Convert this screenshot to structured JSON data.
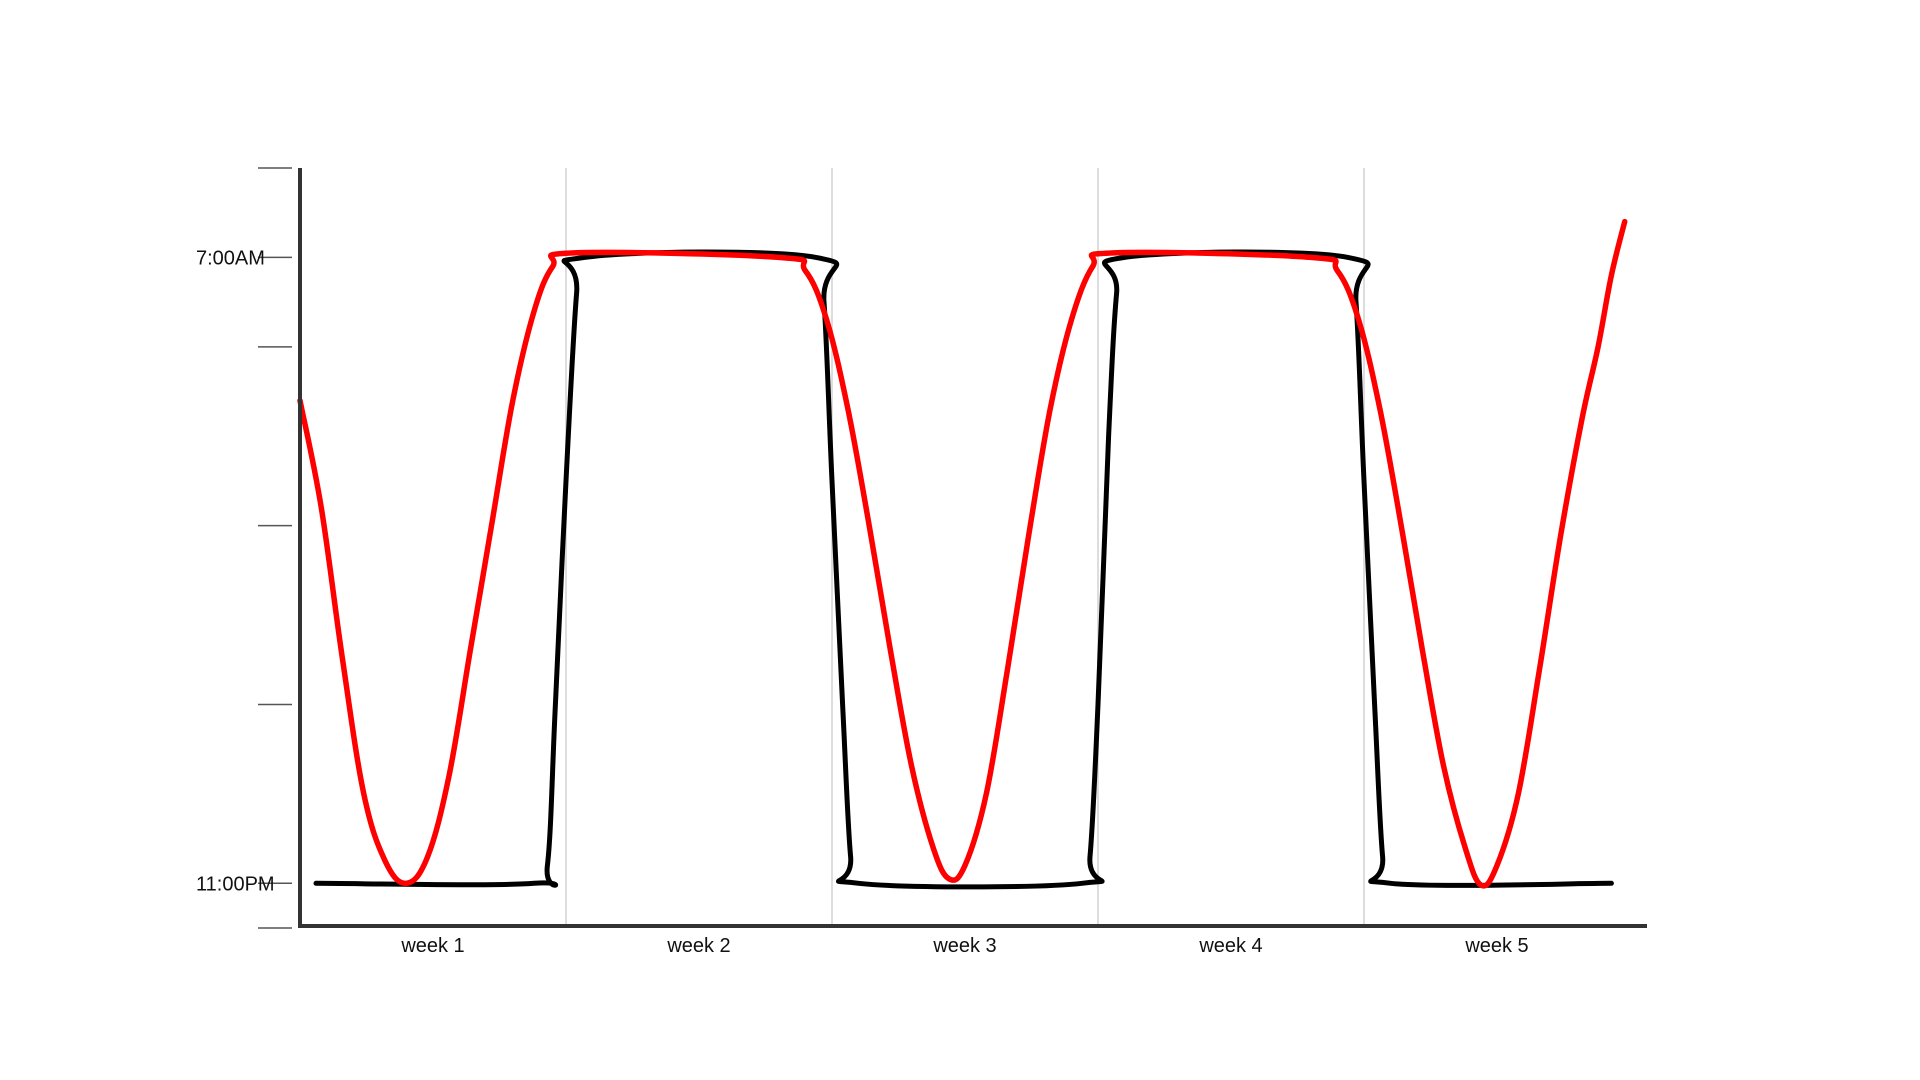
{
  "chart_data": {
    "type": "line",
    "title": "",
    "xlabel": "",
    "ylabel": "",
    "x_categories": [
      "week 1",
      "week 2",
      "week 3",
      "week 4",
      "week 5"
    ],
    "y_tick_labels": [
      {
        "value": 7,
        "label": "7:00AM"
      },
      {
        "value": 0,
        "label": "11:00PM"
      }
    ],
    "y_ticks": [
      -0.5,
      0,
      2,
      4,
      6,
      7,
      8
    ],
    "xlim": [
      0,
      5
    ],
    "ylim": [
      -0.5,
      8
    ],
    "x_gridlines": [
      1,
      2,
      3,
      4
    ],
    "grid": "vertical",
    "legend": "none",
    "series": [
      {
        "color": "#000000",
        "points": [
          [
            0.06,
            0
          ],
          [
            0.88,
            0
          ],
          [
            0.93,
            0.2
          ],
          [
            0.96,
            2
          ],
          [
            1.0,
            4.5
          ],
          [
            1.04,
            6.6
          ],
          [
            1.07,
            7
          ],
          [
            1.94,
            7
          ],
          [
            1.97,
            6.5
          ],
          [
            2.0,
            4.5
          ],
          [
            2.04,
            2
          ],
          [
            2.07,
            0.3
          ],
          [
            2.1,
            0
          ],
          [
            2.94,
            0
          ],
          [
            2.97,
            0.3
          ],
          [
            3.0,
            2
          ],
          [
            3.04,
            5
          ],
          [
            3.07,
            6.6
          ],
          [
            3.1,
            7
          ],
          [
            3.94,
            7
          ],
          [
            3.97,
            6.5
          ],
          [
            4.0,
            4.5
          ],
          [
            4.04,
            2
          ],
          [
            4.07,
            0.3
          ],
          [
            4.1,
            0
          ],
          [
            4.93,
            0
          ]
        ]
      },
      {
        "color": "#ff0000",
        "points": [
          [
            0,
            5.4
          ],
          [
            0.08,
            4.2
          ],
          [
            0.16,
            2.5
          ],
          [
            0.24,
            1.0
          ],
          [
            0.32,
            0.25
          ],
          [
            0.4,
            0
          ],
          [
            0.48,
            0.3
          ],
          [
            0.56,
            1.2
          ],
          [
            0.64,
            2.6
          ],
          [
            0.72,
            4.0
          ],
          [
            0.8,
            5.4
          ],
          [
            0.88,
            6.4
          ],
          [
            0.95,
            6.9
          ],
          [
            1.03,
            7.05
          ],
          [
            1.8,
            7.0
          ],
          [
            1.9,
            6.85
          ],
          [
            1.98,
            6.3
          ],
          [
            2.06,
            5.3
          ],
          [
            2.14,
            4.0
          ],
          [
            2.22,
            2.6
          ],
          [
            2.3,
            1.3
          ],
          [
            2.38,
            0.4
          ],
          [
            2.44,
            0.05
          ],
          [
            2.5,
            0.2
          ],
          [
            2.58,
            1.0
          ],
          [
            2.66,
            2.4
          ],
          [
            2.74,
            3.9
          ],
          [
            2.82,
            5.3
          ],
          [
            2.9,
            6.3
          ],
          [
            2.98,
            6.9
          ],
          [
            3.06,
            7.05
          ],
          [
            3.8,
            7.0
          ],
          [
            3.9,
            6.85
          ],
          [
            3.98,
            6.3
          ],
          [
            4.06,
            5.3
          ],
          [
            4.14,
            4.0
          ],
          [
            4.22,
            2.6
          ],
          [
            4.3,
            1.3
          ],
          [
            4.38,
            0.4
          ],
          [
            4.44,
            -0.02
          ],
          [
            4.5,
            0.2
          ],
          [
            4.58,
            1.0
          ],
          [
            4.66,
            2.4
          ],
          [
            4.74,
            3.9
          ],
          [
            4.82,
            5.2
          ],
          [
            4.88,
            6.0
          ],
          [
            4.93,
            6.8
          ],
          [
            4.98,
            7.4
          ]
        ]
      }
    ]
  }
}
